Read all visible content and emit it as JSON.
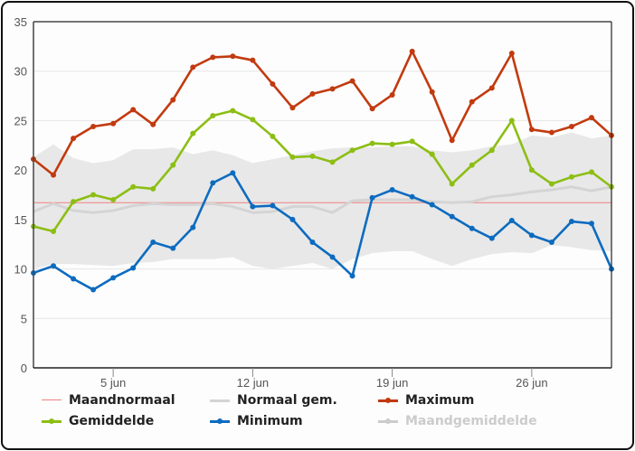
{
  "chart_data": {
    "type": "line",
    "title": "",
    "xlabel": "",
    "ylabel": "",
    "ylim": [
      0,
      35
    ],
    "yticks": [
      "0",
      "5",
      "10",
      "15",
      "20",
      "25",
      "30",
      "35"
    ],
    "x": [
      1,
      2,
      3,
      4,
      5,
      6,
      7,
      8,
      9,
      10,
      11,
      12,
      13,
      14,
      15,
      16,
      17,
      18,
      19,
      20,
      21,
      22,
      23,
      24,
      25,
      26,
      27,
      28,
      29,
      30
    ],
    "xlim": [
      1,
      30
    ],
    "xticks": [
      {
        "day": 5,
        "label": "5 jun"
      },
      {
        "day": 12,
        "label": "12 jun"
      },
      {
        "day": 19,
        "label": "19 jun"
      },
      {
        "day": 26,
        "label": "26 jun"
      }
    ],
    "grid": true,
    "legend_position": "bottom",
    "series": [
      {
        "name": "Maandnormaal",
        "kind": "hline",
        "color": "#f08080",
        "value": 16.7
      },
      {
        "name": "Normaal gem.",
        "kind": "line-nodots",
        "color": "#d4d4d4",
        "values": [
          15.8,
          16.6,
          15.9,
          15.7,
          15.9,
          16.4,
          16.6,
          16.5,
          16.5,
          16.6,
          16.3,
          15.7,
          15.8,
          16.3,
          16.3,
          15.7,
          16.9,
          17.0,
          17.0,
          17.0,
          16.8,
          16.7,
          16.8,
          17.3,
          17.5,
          17.8,
          18.0,
          18.3,
          17.9,
          18.3
        ]
      },
      {
        "name": "Normaal band",
        "kind": "band",
        "color": "#e8e8e8",
        "upper": [
          21.3,
          22.6,
          21.2,
          20.7,
          21.0,
          22.1,
          22.1,
          22.3,
          21.6,
          22.0,
          21.5,
          20.7,
          21.1,
          21.5,
          21.9,
          22.2,
          22.3,
          22.3,
          22.4,
          22.4,
          22.0,
          21.8,
          22.0,
          22.4,
          22.6,
          23.5,
          23.3,
          23.8,
          23.2,
          23.5
        ],
        "lower": [
          10.0,
          10.5,
          10.5,
          10.4,
          10.3,
          10.6,
          10.7,
          11.0,
          11.0,
          11.0,
          11.2,
          10.3,
          10.0,
          10.3,
          10.6,
          10.0,
          11.0,
          11.6,
          11.8,
          11.8,
          11.0,
          10.3,
          11.0,
          11.5,
          11.7,
          11.6,
          12.4,
          12.2,
          11.9,
          11.8
        ]
      },
      {
        "name": "Maximum",
        "kind": "line",
        "color": "#c23a0f",
        "values": [
          21.1,
          19.5,
          23.2,
          24.4,
          24.7,
          26.1,
          24.6,
          27.1,
          30.4,
          31.4,
          31.5,
          31.1,
          28.7,
          26.3,
          27.7,
          28.2,
          29.0,
          26.2,
          27.6,
          32.0,
          27.9,
          23.0,
          26.9,
          28.3,
          31.8,
          24.1,
          23.8,
          24.4,
          25.3,
          23.5
        ]
      },
      {
        "name": "Gemiddelde",
        "kind": "line",
        "color": "#8cbe14",
        "values": [
          14.3,
          13.8,
          16.8,
          17.5,
          17.0,
          18.3,
          18.1,
          20.5,
          23.7,
          25.5,
          26.0,
          25.1,
          23.4,
          21.3,
          21.4,
          20.8,
          22.0,
          22.7,
          22.6,
          22.9,
          21.6,
          18.6,
          20.5,
          22.0,
          25.0,
          20.0,
          18.6,
          19.3,
          19.8,
          18.3
        ]
      },
      {
        "name": "Minimum",
        "kind": "line",
        "color": "#0d6bbf",
        "values": [
          9.6,
          10.3,
          9.0,
          7.9,
          9.1,
          10.1,
          12.7,
          12.1,
          14.2,
          18.7,
          19.7,
          16.3,
          16.4,
          15.0,
          12.7,
          11.2,
          9.3,
          17.2,
          18.0,
          17.3,
          16.5,
          15.3,
          14.1,
          13.1,
          14.9,
          13.4,
          12.7,
          14.8,
          14.6,
          10.0
        ]
      },
      {
        "name": "Maandgemiddelde",
        "kind": "hidden",
        "color": "#cccccc"
      }
    ]
  },
  "legend": [
    {
      "label": "Maandnormaal",
      "color": "#f08080",
      "style": "thin",
      "dot": false,
      "hidden": false
    },
    {
      "label": "Normaal gem.",
      "color": "#d4d4d4",
      "style": "thick",
      "dot": false,
      "hidden": false
    },
    {
      "label": "Maximum",
      "color": "#c23a0f",
      "style": "thick",
      "dot": true,
      "hidden": false
    },
    {
      "label": "Gemiddelde",
      "color": "#8cbe14",
      "style": "thick",
      "dot": true,
      "hidden": false
    },
    {
      "label": "Minimum",
      "color": "#0d6bbf",
      "style": "thick",
      "dot": true,
      "hidden": false
    },
    {
      "label": "Maandgemiddelde",
      "color": "#cccccc",
      "style": "thick",
      "dot": true,
      "hidden": true
    }
  ]
}
